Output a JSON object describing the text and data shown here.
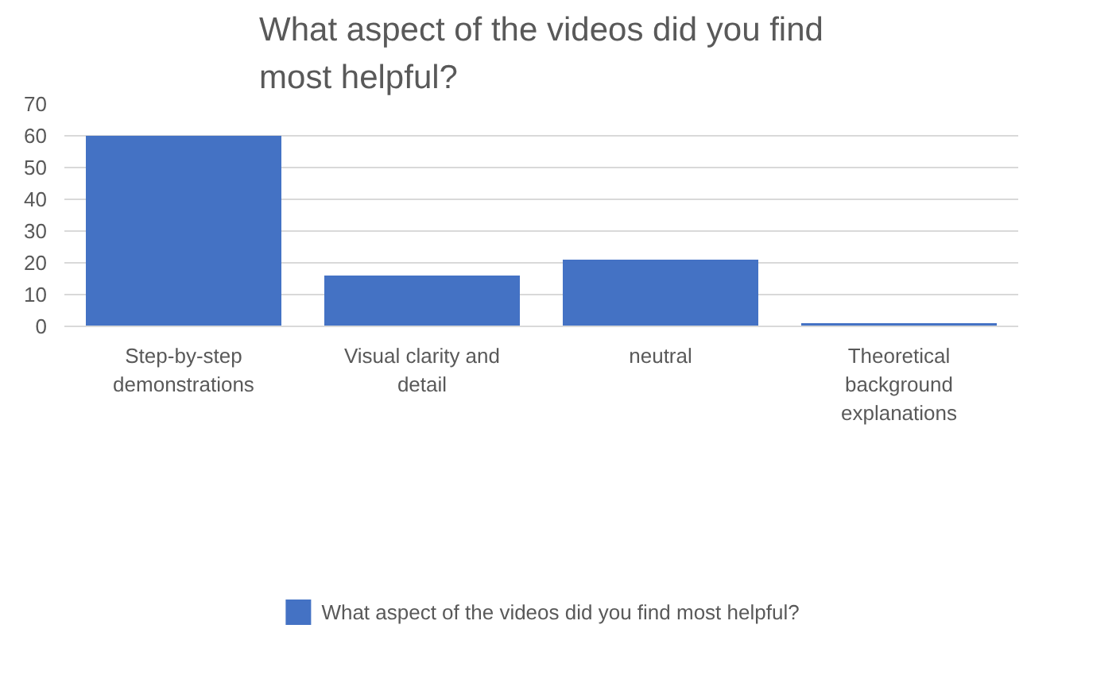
{
  "chart_data": {
    "type": "bar",
    "title": "What aspect of the videos did you find most helpful?",
    "categories": [
      "Step-by-step demonstrations",
      "Visual clarity and detail",
      "neutral",
      "Theoretical background explanations"
    ],
    "series": [
      {
        "name": "What aspect of the videos did you find most helpful?",
        "color": "#4472c4",
        "values": [
          60,
          16,
          21,
          1
        ]
      }
    ],
    "ylim": [
      0,
      70
    ],
    "yticks": [
      0,
      10,
      20,
      30,
      40,
      50,
      60,
      70
    ],
    "grid": "y",
    "legend": "bottom"
  }
}
